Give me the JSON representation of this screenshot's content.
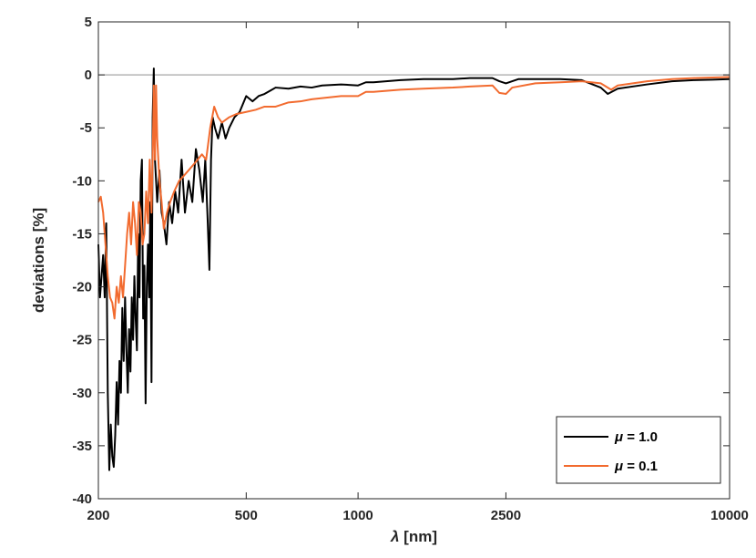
{
  "chart_data": {
    "type": "line",
    "title": "",
    "xlabel_symbol": "λ",
    "xlabel_unit": " [nm]",
    "ylabel": "deviations [%]",
    "xscale": "log",
    "xlim": [
      200,
      10000
    ],
    "ylim": [
      -40,
      5
    ],
    "xticks": [
      200,
      500,
      1000,
      2500,
      10000
    ],
    "xtick_labels": [
      "200",
      "500",
      "1000",
      "2500",
      "10000"
    ],
    "yticks": [
      5,
      0,
      -5,
      -10,
      -15,
      -20,
      -25,
      -30,
      -35,
      -40
    ],
    "ytick_labels": [
      "5",
      "0",
      "-5",
      "-10",
      "-15",
      "-20",
      "-25",
      "-30",
      "-35",
      "-40"
    ],
    "reference_line": 0,
    "grid": false,
    "legend_position": "bottom-right",
    "series": [
      {
        "name_symbol": "μ",
        "name_rest": " = 1.0",
        "color": "#000000",
        "points": [
          [
            200,
            -16
          ],
          [
            202,
            -21
          ],
          [
            204,
            -19
          ],
          [
            206,
            -17
          ],
          [
            208,
            -21
          ],
          [
            210,
            -14
          ],
          [
            212,
            -30
          ],
          [
            214,
            -37.3
          ],
          [
            216,
            -33
          ],
          [
            218,
            -36
          ],
          [
            220,
            -37
          ],
          [
            222,
            -34
          ],
          [
            224,
            -29
          ],
          [
            226,
            -33
          ],
          [
            228,
            -27
          ],
          [
            230,
            -30
          ],
          [
            232,
            -22
          ],
          [
            234,
            -27
          ],
          [
            236,
            -21
          ],
          [
            238,
            -26
          ],
          [
            240,
            -30
          ],
          [
            242,
            -24
          ],
          [
            244,
            -28
          ],
          [
            246,
            -21
          ],
          [
            248,
            -25
          ],
          [
            250,
            -19
          ],
          [
            252,
            -23
          ],
          [
            254,
            -26
          ],
          [
            256,
            -15
          ],
          [
            258,
            -21
          ],
          [
            260,
            -10
          ],
          [
            262,
            -8
          ],
          [
            264,
            -23
          ],
          [
            266,
            -18
          ],
          [
            268,
            -31
          ],
          [
            270,
            -20
          ],
          [
            272,
            -16
          ],
          [
            274,
            -21
          ],
          [
            276,
            -12
          ],
          [
            278,
            -29
          ],
          [
            280,
            -4
          ],
          [
            282,
            0.6
          ],
          [
            284,
            -8
          ],
          [
            286,
            -10
          ],
          [
            288,
            -12
          ],
          [
            292,
            -9
          ],
          [
            296,
            -13
          ],
          [
            300,
            -14
          ],
          [
            305,
            -16
          ],
          [
            310,
            -12
          ],
          [
            316,
            -14
          ],
          [
            322,
            -11
          ],
          [
            328,
            -13
          ],
          [
            335,
            -8
          ],
          [
            342,
            -13
          ],
          [
            350,
            -10
          ],
          [
            358,
            -12
          ],
          [
            366,
            -7
          ],
          [
            374,
            -9
          ],
          [
            382,
            -12
          ],
          [
            388,
            -8
          ],
          [
            394,
            -14
          ],
          [
            398,
            -18.4
          ],
          [
            402,
            -8
          ],
          [
            406,
            -4
          ],
          [
            412,
            -5
          ],
          [
            420,
            -6
          ],
          [
            430,
            -4.5
          ],
          [
            440,
            -6
          ],
          [
            450,
            -5
          ],
          [
            465,
            -4
          ],
          [
            480,
            -3.5
          ],
          [
            500,
            -2
          ],
          [
            520,
            -2.5
          ],
          [
            540,
            -2
          ],
          [
            560,
            -1.8
          ],
          [
            580,
            -1.5
          ],
          [
            600,
            -1.2
          ],
          [
            650,
            -1.3
          ],
          [
            700,
            -1.1
          ],
          [
            750,
            -1.2
          ],
          [
            800,
            -1.0
          ],
          [
            900,
            -0.9
          ],
          [
            1000,
            -1.0
          ],
          [
            1050,
            -0.7
          ],
          [
            1100,
            -0.7
          ],
          [
            1300,
            -0.5
          ],
          [
            1500,
            -0.4
          ],
          [
            1800,
            -0.4
          ],
          [
            2000,
            -0.3
          ],
          [
            2300,
            -0.3
          ],
          [
            2400,
            -0.6
          ],
          [
            2500,
            -0.8
          ],
          [
            2700,
            -0.4
          ],
          [
            3000,
            -0.4
          ],
          [
            3500,
            -0.4
          ],
          [
            4000,
            -0.5
          ],
          [
            4500,
            -1.2
          ],
          [
            4700,
            -1.8
          ],
          [
            5000,
            -1.3
          ],
          [
            6000,
            -0.9
          ],
          [
            7000,
            -0.6
          ],
          [
            8000,
            -0.5
          ],
          [
            9000,
            -0.45
          ],
          [
            10000,
            -0.4
          ]
        ]
      },
      {
        "name_symbol": "μ",
        "name_rest": " = 0.1",
        "color": "#f26b2f",
        "points": [
          [
            200,
            -12
          ],
          [
            203,
            -11.5
          ],
          [
            206,
            -13
          ],
          [
            209,
            -16
          ],
          [
            212,
            -19
          ],
          [
            215,
            -21
          ],
          [
            218,
            -21.5
          ],
          [
            221,
            -23
          ],
          [
            224,
            -20
          ],
          [
            227,
            -21.5
          ],
          [
            230,
            -19
          ],
          [
            233,
            -21
          ],
          [
            236,
            -18
          ],
          [
            239,
            -15
          ],
          [
            242,
            -13
          ],
          [
            245,
            -16
          ],
          [
            248,
            -12
          ],
          [
            251,
            -14
          ],
          [
            254,
            -17
          ],
          [
            257,
            -12
          ],
          [
            260,
            -13
          ],
          [
            263,
            -16
          ],
          [
            266,
            -15
          ],
          [
            269,
            -11
          ],
          [
            272,
            -14
          ],
          [
            275,
            -8
          ],
          [
            278,
            -13
          ],
          [
            280,
            -8
          ],
          [
            282,
            -1
          ],
          [
            284,
            -8
          ],
          [
            286,
            -1
          ],
          [
            288,
            -6
          ],
          [
            292,
            -10
          ],
          [
            296,
            -12
          ],
          [
            300,
            -14.5
          ],
          [
            306,
            -13
          ],
          [
            312,
            -12
          ],
          [
            320,
            -11
          ],
          [
            330,
            -10
          ],
          [
            340,
            -9.5
          ],
          [
            350,
            -9
          ],
          [
            360,
            -8.5
          ],
          [
            370,
            -8
          ],
          [
            380,
            -7.5
          ],
          [
            390,
            -8
          ],
          [
            400,
            -5
          ],
          [
            410,
            -3
          ],
          [
            420,
            -4
          ],
          [
            430,
            -4.5
          ],
          [
            450,
            -4
          ],
          [
            470,
            -3.7
          ],
          [
            500,
            -3.5
          ],
          [
            530,
            -3.3
          ],
          [
            560,
            -3
          ],
          [
            600,
            -3
          ],
          [
            650,
            -2.6
          ],
          [
            700,
            -2.5
          ],
          [
            750,
            -2.3
          ],
          [
            800,
            -2.2
          ],
          [
            900,
            -2.0
          ],
          [
            1000,
            -2.0
          ],
          [
            1050,
            -1.6
          ],
          [
            1100,
            -1.6
          ],
          [
            1300,
            -1.4
          ],
          [
            1500,
            -1.3
          ],
          [
            1800,
            -1.2
          ],
          [
            2000,
            -1.1
          ],
          [
            2300,
            -1.0
          ],
          [
            2400,
            -1.7
          ],
          [
            2500,
            -1.8
          ],
          [
            2600,
            -1.2
          ],
          [
            3000,
            -0.8
          ],
          [
            3500,
            -0.7
          ],
          [
            4000,
            -0.6
          ],
          [
            4500,
            -0.8
          ],
          [
            4800,
            -1.4
          ],
          [
            5000,
            -1.0
          ],
          [
            6000,
            -0.6
          ],
          [
            7000,
            -0.4
          ],
          [
            8000,
            -0.3
          ],
          [
            9000,
            -0.25
          ],
          [
            10000,
            -0.2
          ]
        ]
      }
    ]
  }
}
